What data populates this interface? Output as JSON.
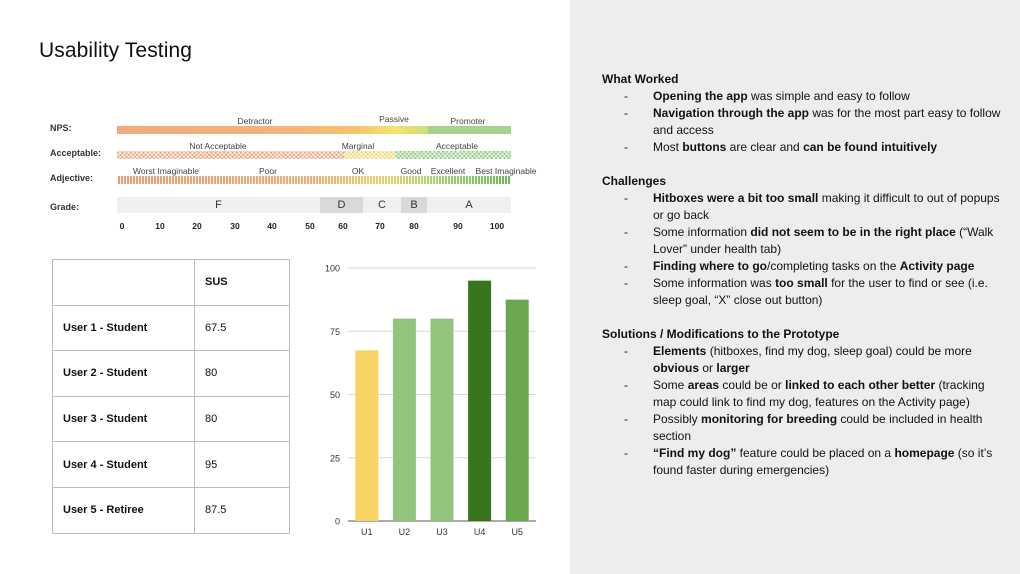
{
  "slide": {
    "title": "Usability Testing"
  },
  "scale": {
    "rows": {
      "nps": "NPS:",
      "acceptable": "Acceptable:",
      "adjective": "Adjective:",
      "grade": "Grade:"
    },
    "nps": [
      "Detractor",
      "Passive",
      "Promoter"
    ],
    "acceptable": [
      "Not Acceptable",
      "Marginal",
      "Acceptable"
    ],
    "adjective": [
      "Worst Imaginable",
      "Poor",
      "OK",
      "Good",
      "Excellent",
      "Best Imaginable"
    ],
    "grades": [
      "F",
      "D",
      "C",
      "B",
      "A"
    ],
    "ticks": [
      "0",
      "10",
      "20",
      "30",
      "40",
      "50",
      "60",
      "70",
      "80",
      "90",
      "100"
    ]
  },
  "table": {
    "header": [
      "",
      "SUS"
    ],
    "rows": [
      {
        "user": "User 1 - Student",
        "sus": "67.5"
      },
      {
        "user": "User 2 - Student",
        "sus": "80"
      },
      {
        "user": "User 3 - Student",
        "sus": "80"
      },
      {
        "user": "User 4 - Student",
        "sus": "95"
      },
      {
        "user": "User 5 - Retiree",
        "sus": "87.5"
      }
    ]
  },
  "chart_data": {
    "type": "bar",
    "categories": [
      "U1",
      "U2",
      "U3",
      "U4",
      "U5"
    ],
    "values": [
      67.5,
      80,
      80,
      95,
      87.5
    ],
    "colors": [
      "#f8d465",
      "#93c47d",
      "#93c47d",
      "#38761d",
      "#6aa84f"
    ],
    "ylim": [
      0,
      100
    ],
    "yticks": [
      0,
      25,
      50,
      75,
      100
    ],
    "grid": true,
    "title": "",
    "xlabel": "",
    "ylabel": ""
  },
  "notes": {
    "what_worked": {
      "heading": "What Worked",
      "items": [
        [
          {
            "t": "Opening the app",
            "b": true
          },
          {
            "t": " was simple and easy to follow"
          }
        ],
        [
          {
            "t": "Navigation through the app",
            "b": true
          },
          {
            "t": " was for the most part easy to follow and access"
          }
        ],
        [
          {
            "t": "Most "
          },
          {
            "t": "buttons",
            "b": true
          },
          {
            "t": " are clear and "
          },
          {
            "t": "can be found intuitively",
            "b": true
          }
        ]
      ]
    },
    "challenges": {
      "heading": "Challenges",
      "items": [
        [
          {
            "t": "Hitboxes were a bit too small",
            "b": true
          },
          {
            "t": " making it difficult to out of popups or go back"
          }
        ],
        [
          {
            "t": "Some information "
          },
          {
            "t": "did not seem to be in the right place",
            "b": true
          },
          {
            "t": " (“Walk Lover” under health tab)"
          }
        ],
        [
          {
            "t": "Finding where to go",
            "b": true
          },
          {
            "t": "/completing tasks on the "
          },
          {
            "t": "Activity page",
            "b": true
          }
        ],
        [
          {
            "t": "Some information was "
          },
          {
            "t": "too small",
            "b": true
          },
          {
            "t": " for the user to find or see (i.e. sleep goal, “X” close out button)"
          }
        ]
      ]
    },
    "solutions": {
      "heading": "Solutions / Modifications to the Prototype",
      "items": [
        [
          {
            "t": "Elements",
            "b": true
          },
          {
            "t": "  (hitboxes, find my dog, sleep goal) could be more "
          },
          {
            "t": "obvious",
            "b": true
          },
          {
            "t": " or "
          },
          {
            "t": "larger",
            "b": true
          }
        ],
        [
          {
            "t": "Some "
          },
          {
            "t": "areas",
            "b": true
          },
          {
            "t": " could be or "
          },
          {
            "t": "linked to each other better",
            "b": true
          },
          {
            "t": " (tracking map could link to find my dog, features on the Activity page)"
          }
        ],
        [
          {
            "t": "Possibly "
          },
          {
            "t": "monitoring for breeding",
            "b": true
          },
          {
            "t": " could be included in health section"
          }
        ],
        [
          {
            "t": "“Find my dog”",
            "b": true
          },
          {
            "t": " feature could be placed on a "
          },
          {
            "t": "homepage",
            "b": true
          },
          {
            "t": " (so it’s found faster during emergencies)"
          }
        ]
      ]
    }
  }
}
